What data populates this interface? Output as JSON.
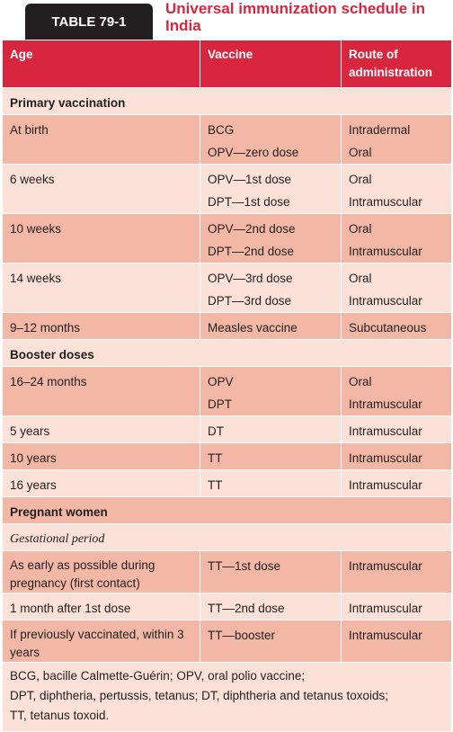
{
  "header": {
    "label": "TABLE 79-1",
    "title": "Universal immunization schedule in India"
  },
  "table": {
    "columns": [
      "Age",
      "Vaccine",
      "Route of administration"
    ],
    "rows": [
      {
        "section": "Primary vaccination"
      },
      {
        "age": "At birth",
        "vaccine": [
          "BCG",
          "OPV—zero dose"
        ],
        "route": [
          "Intradermal",
          "Oral"
        ]
      },
      {
        "age": "6 weeks",
        "vaccine": [
          "OPV—1st dose",
          "DPT—1st dose"
        ],
        "route": [
          "Oral",
          "Intramuscular"
        ]
      },
      {
        "age": "10 weeks",
        "vaccine": [
          "OPV—2nd dose",
          "DPT—2nd dose"
        ],
        "route": [
          "Oral",
          "Intramuscular"
        ]
      },
      {
        "age": "14 weeks",
        "vaccine": [
          "OPV—3rd dose",
          "DPT—3rd dose"
        ],
        "route": [
          "Oral",
          "Intramuscular"
        ]
      },
      {
        "age": "9–12 months",
        "vaccine": [
          "Measles vaccine"
        ],
        "route": [
          "Subcutaneous"
        ]
      },
      {
        "section": "Booster doses"
      },
      {
        "age": "16–24 months",
        "vaccine": [
          "OPV",
          "DPT"
        ],
        "route": [
          "Oral",
          "Intramuscular"
        ]
      },
      {
        "age": "5 years",
        "vaccine": [
          "DT"
        ],
        "route": [
          "Intramuscular"
        ]
      },
      {
        "age": "10 years",
        "vaccine": [
          "TT"
        ],
        "route": [
          "Intramuscular"
        ]
      },
      {
        "age": "16 years",
        "vaccine": [
          "TT"
        ],
        "route": [
          "Intramuscular"
        ]
      },
      {
        "section": "Pregnant women"
      },
      {
        "subsection": "Gestational period"
      },
      {
        "age": "As early as possible during pregnancy (first contact)",
        "vaccine": [
          "TT—1st dose"
        ],
        "route": [
          "Intramuscular"
        ]
      },
      {
        "age": "1 month after 1st dose",
        "vaccine": [
          "TT—2nd dose"
        ],
        "route": [
          "Intramuscular"
        ]
      },
      {
        "age": "If previously vaccinated, within 3 years",
        "vaccine": [
          "TT—booster"
        ],
        "route": [
          "Intramuscular"
        ]
      }
    ]
  },
  "footnote": [
    "BCG, bacille Calmette-Guérin; OPV, oral polio vaccine;",
    "DPT, diphtheria, pertussis, tetanus; DT, diphtheria and tetanus toxoids;",
    "TT, tetanus toxoid."
  ]
}
